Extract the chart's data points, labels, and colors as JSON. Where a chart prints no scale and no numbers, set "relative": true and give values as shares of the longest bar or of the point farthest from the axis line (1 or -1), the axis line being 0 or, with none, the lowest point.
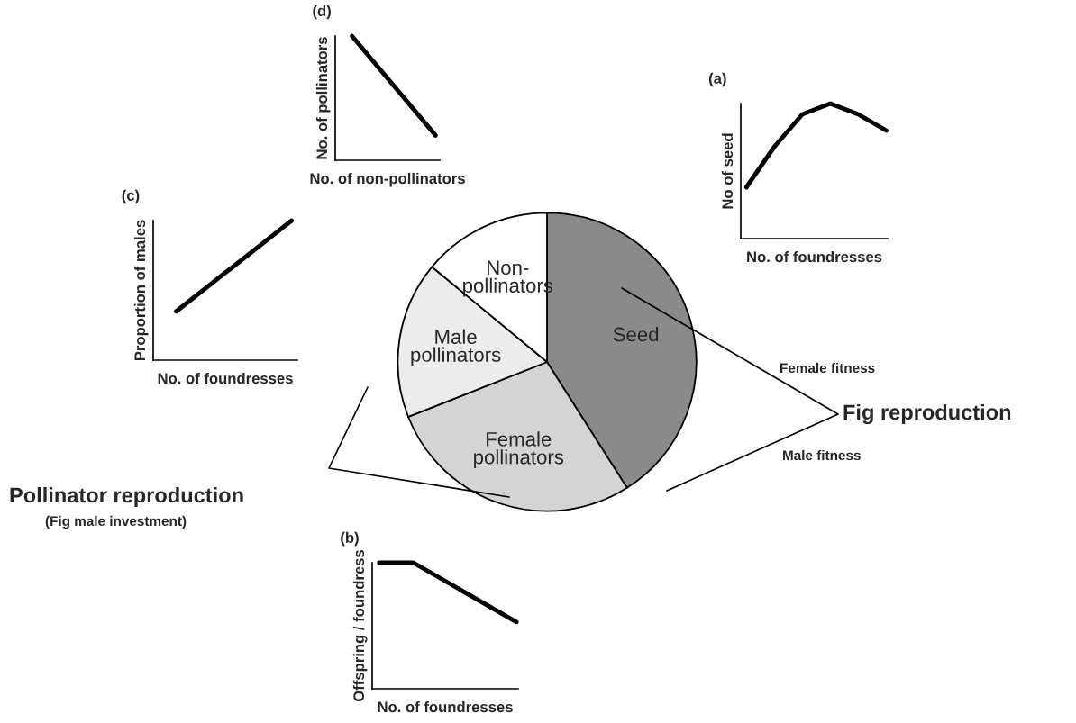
{
  "chart_data": [
    {
      "type": "pie",
      "categories": [
        "Seed",
        "Female\npollinators",
        "Male\npollinators",
        "Non-\npollinators"
      ],
      "values": [
        41,
        28,
        17,
        14
      ],
      "colors": [
        "#8a8a8a",
        "#d4d4d4",
        "#ececec",
        "#ffffff"
      ],
      "annotations": [
        "Female fitness",
        "Male fitness",
        "Fig reproduction",
        "Pollinator reproduction",
        "(Fig male investment)"
      ]
    },
    {
      "type": "line",
      "title": "(d)",
      "xlabel": "No. of non-pollinators",
      "ylabel": "No. of pollinators",
      "relative": true,
      "tick_labels": false,
      "color": "#000000",
      "categories": [
        null,
        null
      ],
      "values": [
        1,
        0.2
      ]
    },
    {
      "type": "line",
      "title": "(a)",
      "xlabel": "No. of foundresses",
      "ylabel": "No of seed",
      "relative": true,
      "tick_labels": false,
      "color": "#000000",
      "categories": [
        null,
        null,
        null,
        null,
        null,
        null
      ],
      "values": [
        0.38,
        0.68,
        0.92,
        1,
        0.92,
        0.8
      ]
    },
    {
      "type": "line",
      "title": "(c)",
      "xlabel": "No. of foundresses",
      "ylabel": "Proportion of males",
      "relative": true,
      "tick_labels": false,
      "color": "#000000",
      "categories": [
        null,
        null
      ],
      "values": [
        0.35,
        1
      ]
    },
    {
      "type": "line",
      "title": "(b)",
      "xlabel": "No. of foundresses",
      "ylabel": "Offspring / foundress",
      "relative": true,
      "tick_labels": false,
      "color": "#000000",
      "categories": [
        null,
        null,
        null,
        null,
        null
      ],
      "values": [
        1,
        1,
        null,
        null,
        0.53
      ]
    }
  ]
}
